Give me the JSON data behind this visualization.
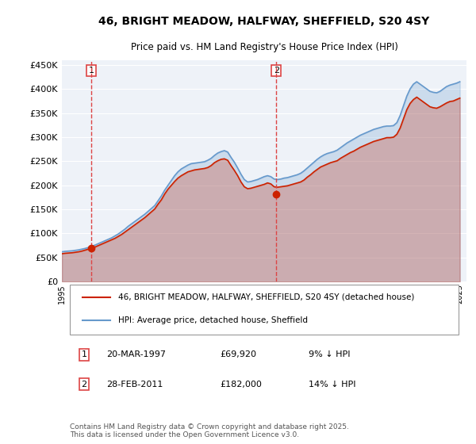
{
  "title": "46, BRIGHT MEADOW, HALFWAY, SHEFFIELD, S20 4SY",
  "subtitle": "Price paid vs. HM Land Registry's House Price Index (HPI)",
  "ylabel_values": [
    "£0",
    "£50K",
    "£100K",
    "£150K",
    "£200K",
    "£250K",
    "£300K",
    "£350K",
    "£400K",
    "£450K"
  ],
  "ylim": [
    0,
    460000
  ],
  "yticks": [
    0,
    50000,
    100000,
    150000,
    200000,
    250000,
    300000,
    350000,
    400000,
    450000
  ],
  "xlim_start": 1995.0,
  "xlim_end": 2025.5,
  "xticks": [
    1995,
    1996,
    1997,
    1998,
    1999,
    2000,
    2001,
    2002,
    2003,
    2004,
    2005,
    2006,
    2007,
    2008,
    2009,
    2010,
    2011,
    2012,
    2013,
    2014,
    2015,
    2016,
    2017,
    2018,
    2019,
    2020,
    2021,
    2022,
    2023,
    2024,
    2025
  ],
  "hpi_color": "#6699cc",
  "sold_color": "#cc2200",
  "marker_color": "#cc2200",
  "vline_color": "#dd4444",
  "bg_color": "#eef2f8",
  "grid_color": "#ffffff",
  "legend_label_sold": "46, BRIGHT MEADOW, HALFWAY, SHEFFIELD, S20 4SY (detached house)",
  "legend_label_hpi": "HPI: Average price, detached house, Sheffield",
  "sale1_label": "1",
  "sale1_date": "20-MAR-1997",
  "sale1_price": "£69,920",
  "sale1_note": "9% ↓ HPI",
  "sale1_year": 1997.22,
  "sale1_value": 69920,
  "sale2_label": "2",
  "sale2_date": "28-FEB-2011",
  "sale2_price": "£182,000",
  "sale2_note": "14% ↓ HPI",
  "sale2_year": 2011.16,
  "sale2_value": 182000,
  "footnote": "Contains HM Land Registry data © Crown copyright and database right 2025.\nThis data is licensed under the Open Government Licence v3.0.",
  "hpi_x": [
    1995.0,
    1995.25,
    1995.5,
    1995.75,
    1996.0,
    1996.25,
    1996.5,
    1996.75,
    1997.0,
    1997.25,
    1997.5,
    1997.75,
    1998.0,
    1998.25,
    1998.5,
    1998.75,
    1999.0,
    1999.25,
    1999.5,
    1999.75,
    2000.0,
    2000.25,
    2000.5,
    2000.75,
    2001.0,
    2001.25,
    2001.5,
    2001.75,
    2002.0,
    2002.25,
    2002.5,
    2002.75,
    2003.0,
    2003.25,
    2003.5,
    2003.75,
    2004.0,
    2004.25,
    2004.5,
    2004.75,
    2005.0,
    2005.25,
    2005.5,
    2005.75,
    2006.0,
    2006.25,
    2006.5,
    2006.75,
    2007.0,
    2007.25,
    2007.5,
    2007.75,
    2008.0,
    2008.25,
    2008.5,
    2008.75,
    2009.0,
    2009.25,
    2009.5,
    2009.75,
    2010.0,
    2010.25,
    2010.5,
    2010.75,
    2011.0,
    2011.25,
    2011.5,
    2011.75,
    2012.0,
    2012.25,
    2012.5,
    2012.75,
    2013.0,
    2013.25,
    2013.5,
    2013.75,
    2014.0,
    2014.25,
    2014.5,
    2014.75,
    2015.0,
    2015.25,
    2015.5,
    2015.75,
    2016.0,
    2016.25,
    2016.5,
    2016.75,
    2017.0,
    2017.25,
    2017.5,
    2017.75,
    2018.0,
    2018.25,
    2018.5,
    2018.75,
    2019.0,
    2019.25,
    2019.5,
    2019.75,
    2020.0,
    2020.25,
    2020.5,
    2020.75,
    2021.0,
    2021.25,
    2021.5,
    2021.75,
    2022.0,
    2022.25,
    2022.5,
    2022.75,
    2023.0,
    2023.25,
    2023.5,
    2023.75,
    2024.0,
    2024.25,
    2024.5,
    2024.75,
    2025.0
  ],
  "hpi_y": [
    62000,
    63000,
    63500,
    64000,
    65000,
    66000,
    67500,
    69000,
    71000,
    73500,
    76000,
    79000,
    82000,
    85000,
    88000,
    91000,
    95000,
    99000,
    104000,
    109000,
    115000,
    120000,
    125000,
    130000,
    135000,
    140000,
    146000,
    152000,
    158000,
    168000,
    178000,
    190000,
    200000,
    210000,
    220000,
    228000,
    234000,
    238000,
    242000,
    245000,
    246000,
    247000,
    248000,
    249000,
    252000,
    256000,
    262000,
    267000,
    270000,
    272000,
    269000,
    258000,
    248000,
    236000,
    223000,
    212000,
    207000,
    208000,
    210000,
    212000,
    215000,
    218000,
    220000,
    218000,
    213000,
    212000,
    213000,
    215000,
    216000,
    218000,
    220000,
    222000,
    225000,
    230000,
    236000,
    242000,
    248000,
    254000,
    259000,
    263000,
    266000,
    268000,
    270000,
    273000,
    278000,
    283000,
    288000,
    292000,
    296000,
    300000,
    304000,
    307000,
    310000,
    313000,
    316000,
    318000,
    320000,
    322000,
    323000,
    323000,
    324000,
    330000,
    345000,
    365000,
    385000,
    400000,
    410000,
    415000,
    410000,
    405000,
    400000,
    395000,
    393000,
    392000,
    395000,
    400000,
    405000,
    408000,
    410000,
    412000,
    415000
  ],
  "sold_x": [
    1995.0,
    1995.25,
    1995.5,
    1995.75,
    1996.0,
    1996.25,
    1996.5,
    1996.75,
    1997.0,
    1997.25,
    1997.5,
    1997.75,
    1998.0,
    1998.25,
    1998.5,
    1998.75,
    1999.0,
    1999.25,
    1999.5,
    1999.75,
    2000.0,
    2000.25,
    2000.5,
    2000.75,
    2001.0,
    2001.25,
    2001.5,
    2001.75,
    2002.0,
    2002.25,
    2002.5,
    2002.75,
    2003.0,
    2003.25,
    2003.5,
    2003.75,
    2004.0,
    2004.25,
    2004.5,
    2004.75,
    2005.0,
    2005.25,
    2005.5,
    2005.75,
    2006.0,
    2006.25,
    2006.5,
    2006.75,
    2007.0,
    2007.25,
    2007.5,
    2007.75,
    2008.0,
    2008.25,
    2008.5,
    2008.75,
    2009.0,
    2009.25,
    2009.5,
    2009.75,
    2010.0,
    2010.25,
    2010.5,
    2010.75,
    2011.0,
    2011.25,
    2011.5,
    2011.75,
    2012.0,
    2012.25,
    2012.5,
    2012.75,
    2013.0,
    2013.25,
    2013.5,
    2013.75,
    2014.0,
    2014.25,
    2014.5,
    2014.75,
    2015.0,
    2015.25,
    2015.5,
    2015.75,
    2016.0,
    2016.25,
    2016.5,
    2016.75,
    2017.0,
    2017.25,
    2017.5,
    2017.75,
    2018.0,
    2018.25,
    2018.5,
    2018.75,
    2019.0,
    2019.25,
    2019.5,
    2019.75,
    2020.0,
    2020.25,
    2020.5,
    2020.75,
    2021.0,
    2021.25,
    2021.5,
    2021.75,
    2022.0,
    2022.25,
    2022.5,
    2022.75,
    2023.0,
    2023.25,
    2023.5,
    2023.75,
    2024.0,
    2024.25,
    2024.5,
    2024.75,
    2025.0
  ],
  "sold_y": [
    58000,
    59000,
    59500,
    60000,
    61000,
    62000,
    63500,
    65500,
    67500,
    70000,
    72000,
    75000,
    78000,
    81000,
    84000,
    87000,
    90000,
    94000,
    98000,
    103000,
    108000,
    113000,
    118000,
    123000,
    128000,
    133000,
    139000,
    145000,
    151000,
    161000,
    170000,
    182000,
    192000,
    200000,
    208000,
    215000,
    220000,
    224000,
    228000,
    230000,
    232000,
    233000,
    234000,
    235000,
    237000,
    241000,
    247000,
    251000,
    254000,
    255000,
    252000,
    241000,
    231000,
    220000,
    207000,
    197000,
    193000,
    194000,
    196000,
    198000,
    200000,
    202000,
    205000,
    203000,
    197000,
    196000,
    197000,
    198000,
    199000,
    201000,
    203000,
    205000,
    207000,
    211000,
    217000,
    222000,
    228000,
    233000,
    238000,
    241000,
    244000,
    247000,
    249000,
    251000,
    256000,
    260000,
    264000,
    268000,
    271000,
    275000,
    279000,
    282000,
    285000,
    288000,
    291000,
    293000,
    295000,
    297000,
    299000,
    299000,
    300000,
    306000,
    319000,
    338000,
    357000,
    370000,
    378000,
    383000,
    378000,
    373000,
    368000,
    363000,
    361000,
    360000,
    363000,
    367000,
    371000,
    374000,
    375000,
    378000,
    381000
  ]
}
